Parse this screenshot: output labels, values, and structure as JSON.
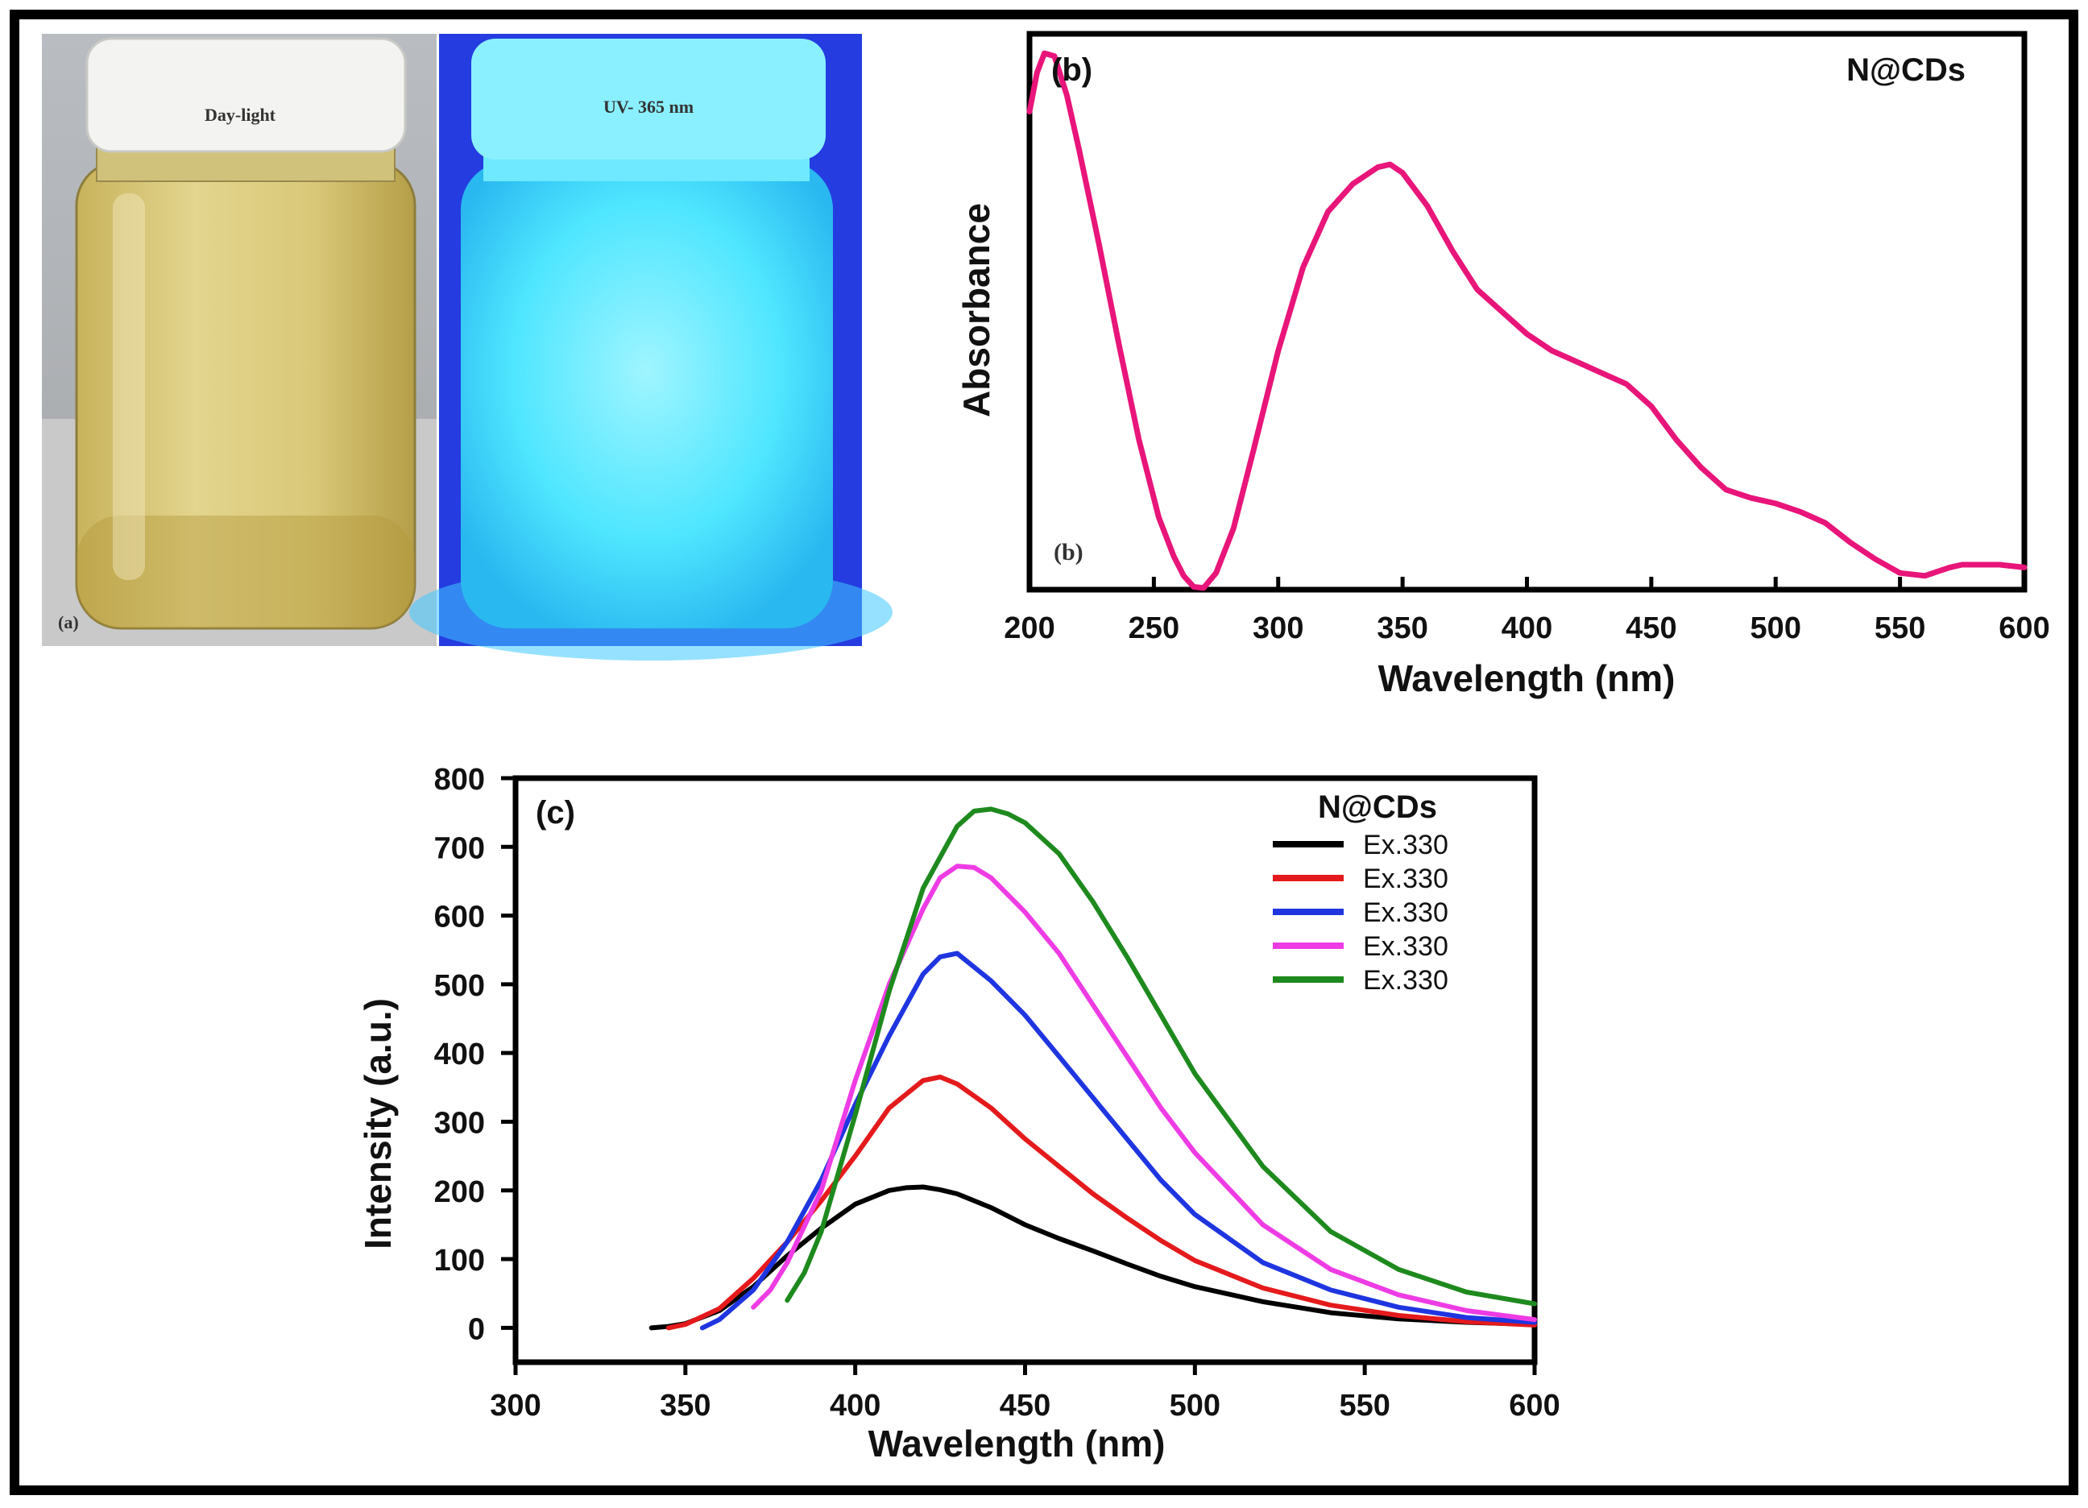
{
  "photo": {
    "left_label": "Day-light",
    "right_label": "UV- 365 nm",
    "panel_tag": "(a)",
    "colors": {
      "vial_liquid": "#d8c77a",
      "uv_glow": "#3fe3ff",
      "uv_background": "#1a2fd8"
    }
  },
  "chart_data": [
    {
      "id": "b",
      "type": "line",
      "panel_tag": "(b)",
      "inner_tag": "(b)",
      "title": "N@CDs",
      "xlabel": "Wavelength (nm)",
      "ylabel": "Absorbance",
      "xlim": [
        200,
        600
      ],
      "ylim": [
        0,
        1
      ],
      "xticks": [
        "200",
        "250",
        "300",
        "350",
        "400",
        "450",
        "500",
        "550",
        "600"
      ],
      "series": [
        {
          "name": "N@CDs",
          "color": "#e8157a",
          "x": [
            200,
            203,
            206,
            210,
            215,
            220,
            228,
            236,
            244,
            252,
            258,
            262,
            266,
            270,
            275,
            282,
            290,
            300,
            310,
            320,
            330,
            340,
            345,
            350,
            360,
            370,
            380,
            390,
            400,
            410,
            420,
            430,
            440,
            450,
            460,
            470,
            480,
            490,
            500,
            510,
            520,
            530,
            540,
            550,
            560,
            570,
            575,
            580,
            590,
            600
          ],
          "y": [
            0.86,
            0.93,
            0.965,
            0.96,
            0.89,
            0.79,
            0.62,
            0.44,
            0.27,
            0.13,
            0.06,
            0.025,
            0.005,
            0.003,
            0.03,
            0.11,
            0.25,
            0.43,
            0.58,
            0.68,
            0.73,
            0.76,
            0.765,
            0.75,
            0.69,
            0.61,
            0.54,
            0.5,
            0.46,
            0.43,
            0.41,
            0.39,
            0.37,
            0.33,
            0.27,
            0.22,
            0.18,
            0.165,
            0.155,
            0.14,
            0.12,
            0.085,
            0.055,
            0.03,
            0.025,
            0.04,
            0.045,
            0.045,
            0.045,
            0.04
          ]
        }
      ]
    },
    {
      "id": "c",
      "type": "line",
      "panel_tag": "(c)",
      "title": "N@CDs",
      "xlabel": "Wavelength (nm)",
      "ylabel": "Intensity (a.u.)",
      "xlim": [
        300,
        600
      ],
      "ylim": [
        -50,
        800
      ],
      "xticks": [
        "300",
        "350",
        "400",
        "450",
        "500",
        "550",
        "600"
      ],
      "yticks": [
        "0",
        "100",
        "200",
        "300",
        "400",
        "500",
        "600",
        "700",
        "800"
      ],
      "legend_position": "top-right",
      "series": [
        {
          "name": "Ex.330",
          "color": "#000000",
          "x": [
            340,
            345,
            350,
            360,
            370,
            380,
            390,
            400,
            410,
            415,
            420,
            425,
            430,
            440,
            450,
            460,
            470,
            480,
            490,
            500,
            520,
            540,
            560,
            580,
            600
          ],
          "y": [
            0,
            2,
            6,
            25,
            60,
            105,
            145,
            180,
            200,
            204,
            205,
            201,
            195,
            175,
            150,
            130,
            112,
            93,
            75,
            60,
            38,
            22,
            13,
            8,
            5
          ]
        },
        {
          "name": "Ex.330",
          "color": "#e41a1c",
          "x": [
            345,
            350,
            360,
            370,
            380,
            390,
            400,
            410,
            420,
            425,
            430,
            440,
            450,
            460,
            470,
            480,
            490,
            500,
            520,
            540,
            560,
            580,
            600
          ],
          "y": [
            0,
            5,
            28,
            72,
            125,
            185,
            250,
            320,
            360,
            365,
            355,
            320,
            275,
            235,
            195,
            160,
            127,
            98,
            58,
            33,
            18,
            9,
            4
          ]
        },
        {
          "name": "Ex.330",
          "color": "#1f35e0",
          "x": [
            355,
            360,
            370,
            380,
            390,
            400,
            410,
            420,
            425,
            430,
            435,
            440,
            450,
            460,
            470,
            480,
            490,
            500,
            520,
            540,
            560,
            580,
            600
          ],
          "y": [
            0,
            12,
            55,
            125,
            215,
            325,
            425,
            515,
            540,
            545,
            525,
            505,
            455,
            395,
            335,
            275,
            215,
            165,
            95,
            55,
            30,
            15,
            8
          ]
        },
        {
          "name": "Ex.330",
          "color": "#ee3ce4",
          "x": [
            370,
            375,
            380,
            390,
            400,
            410,
            420,
            425,
            430,
            435,
            440,
            450,
            460,
            470,
            480,
            490,
            500,
            520,
            540,
            560,
            580,
            600
          ],
          "y": [
            30,
            55,
            95,
            200,
            360,
            500,
            610,
            655,
            672,
            670,
            655,
            605,
            545,
            470,
            395,
            320,
            255,
            150,
            85,
            48,
            25,
            12
          ]
        },
        {
          "name": "Ex.330",
          "color": "#1e8a1e",
          "x": [
            380,
            385,
            390,
            400,
            410,
            420,
            430,
            435,
            440,
            445,
            450,
            460,
            470,
            480,
            490,
            500,
            520,
            540,
            560,
            580,
            600
          ],
          "y": [
            40,
            80,
            140,
            310,
            490,
            640,
            730,
            752,
            755,
            748,
            735,
            690,
            620,
            540,
            455,
            370,
            235,
            140,
            85,
            52,
            35
          ]
        }
      ]
    }
  ]
}
